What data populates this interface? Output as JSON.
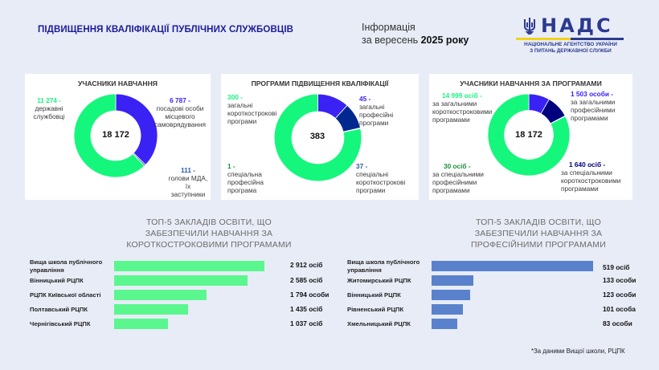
{
  "header": {
    "title": "ПІДВИЩЕННЯ КВАЛІФІКАЦІЇ ПУБЛІЧНИХ СЛУЖБОВЦІВ",
    "info_line1": "Інформація",
    "info_line2_prefix": "за вересень ",
    "info_line2_bold": "2025 року"
  },
  "logo": {
    "word": "НАДС",
    "sub_line1": "НАЦІОНАЛЬНЕ АГЕНТСТВО УКРАЇНИ",
    "sub_line2": "З ПИТАНЬ ДЕРЖАВНОЇ СЛУЖБИ",
    "icon": "trident-icon",
    "colors": {
      "brand": "#2b3a8f",
      "yellow": "#f2d21b"
    }
  },
  "colors": {
    "green": "#14f77c",
    "violet": "#3a22f5",
    "navy": "#00298f",
    "dark_navy": "#00007f",
    "steel": "#2a5aa8",
    "dark_green": "#1a8f3a",
    "bar_green": "#5af78e",
    "bar_blue": "#5a82cc"
  },
  "cards": [
    {
      "title": "УЧАСНИКИ НАВЧАННЯ",
      "total": "18 172",
      "segments": [
        {
          "value": 6787,
          "value_label": "6 787 -",
          "text": "посадові особи місцевого самоврядування",
          "color": "#3a22f5"
        },
        {
          "value": 111,
          "value_label": "111 -",
          "text": "голови МДА, їх заступники",
          "color": "#2a5aa8"
        },
        {
          "value": 11274,
          "value_label": "11 274 -",
          "text": "державні службовці",
          "color": "#14f77c"
        }
      ]
    },
    {
      "title": "ПРОГРАМИ ПІДВИЩЕННЯ КВАЛІФІКАЦІЇ",
      "total": "383",
      "segments": [
        {
          "value": 45,
          "value_label": "45 -",
          "text": "загальні професійні програми",
          "color": "#3a22f5"
        },
        {
          "value": 37,
          "value_label": "37 -",
          "text": "спеціальні короткострокові програми",
          "color": "#00298f"
        },
        {
          "value": 1,
          "value_label": "1 -",
          "text": "спеціальна професійна програма",
          "color": "#1a8f3a"
        },
        {
          "value": 300,
          "value_label": "300 -",
          "text": "загальні короткострокові програми",
          "color": "#14f77c"
        }
      ]
    },
    {
      "title": "УЧАСНИКИ НАВЧАННЯ ЗА ПРОГРАМАМИ",
      "total": "18 172",
      "segments": [
        {
          "value": 1503,
          "value_label": "1 503 особи -",
          "text": "за загальними професійними програмами",
          "color": "#3a22f5"
        },
        {
          "value": 1640,
          "value_label": "1 640 осіб -",
          "text": "за спеціальними короткостроковими програмами",
          "color": "#00007f"
        },
        {
          "value": 30,
          "value_label": "30 осіб -",
          "text": "за спеціальними професійними програмами",
          "color": "#1a8f3a"
        },
        {
          "value": 14999,
          "value_label": "14 999 осіб -",
          "text": "за загальними короткостроковими програмами",
          "color": "#14f77c"
        }
      ]
    }
  ],
  "top5_short": {
    "title_line1": "ТОП-5 ЗАКЛАДІВ ОСВІТИ, ЩО",
    "title_line2": "ЗАБЕЗПЕЧИЛИ НАВЧАННЯ ЗА",
    "title_line3": "КОРОТКОСТРОКОВИМИ ПРОГРАМАМИ",
    "rows": [
      {
        "name": "Вища школа публічного управління",
        "value": 2912,
        "value_label": "2 912 осіб"
      },
      {
        "name": "Вінницький РЦПК",
        "value": 2585,
        "value_label": "2 585 осіб"
      },
      {
        "name": "РЦПК Київської області",
        "value": 1794,
        "value_label": "1 794 особи"
      },
      {
        "name": "Полтавський РЦПК",
        "value": 1435,
        "value_label": "1 435 осіб"
      },
      {
        "name": "Чернігівський РЦПК",
        "value": 1037,
        "value_label": "1 037 осіб"
      }
    ]
  },
  "top5_prof": {
    "title_line1": "ТОП-5 ЗАКЛАДІВ ОСВІТИ, ЩО",
    "title_line2": "ЗАБЕЗПЕЧИЛИ НАВЧАННЯ ЗА",
    "title_line3": "ПРОФЕСІЙНИМИ ПРОГРАМАМИ",
    "rows": [
      {
        "name": "Вища школа публічного управління",
        "value": 519,
        "value_label": "519 осіб"
      },
      {
        "name": "Житомирський РЦПК",
        "value": 133,
        "value_label": "133 особи"
      },
      {
        "name": "Вінницький РЦПК",
        "value": 123,
        "value_label": "123 особи"
      },
      {
        "name": "Рівненський РЦПК",
        "value": 101,
        "value_label": "101 особа"
      },
      {
        "name": "Хмельницький РЦПК",
        "value": 83,
        "value_label": "83 особи"
      }
    ]
  },
  "footnote": "*За даними Вищої школи, РЦПК"
}
